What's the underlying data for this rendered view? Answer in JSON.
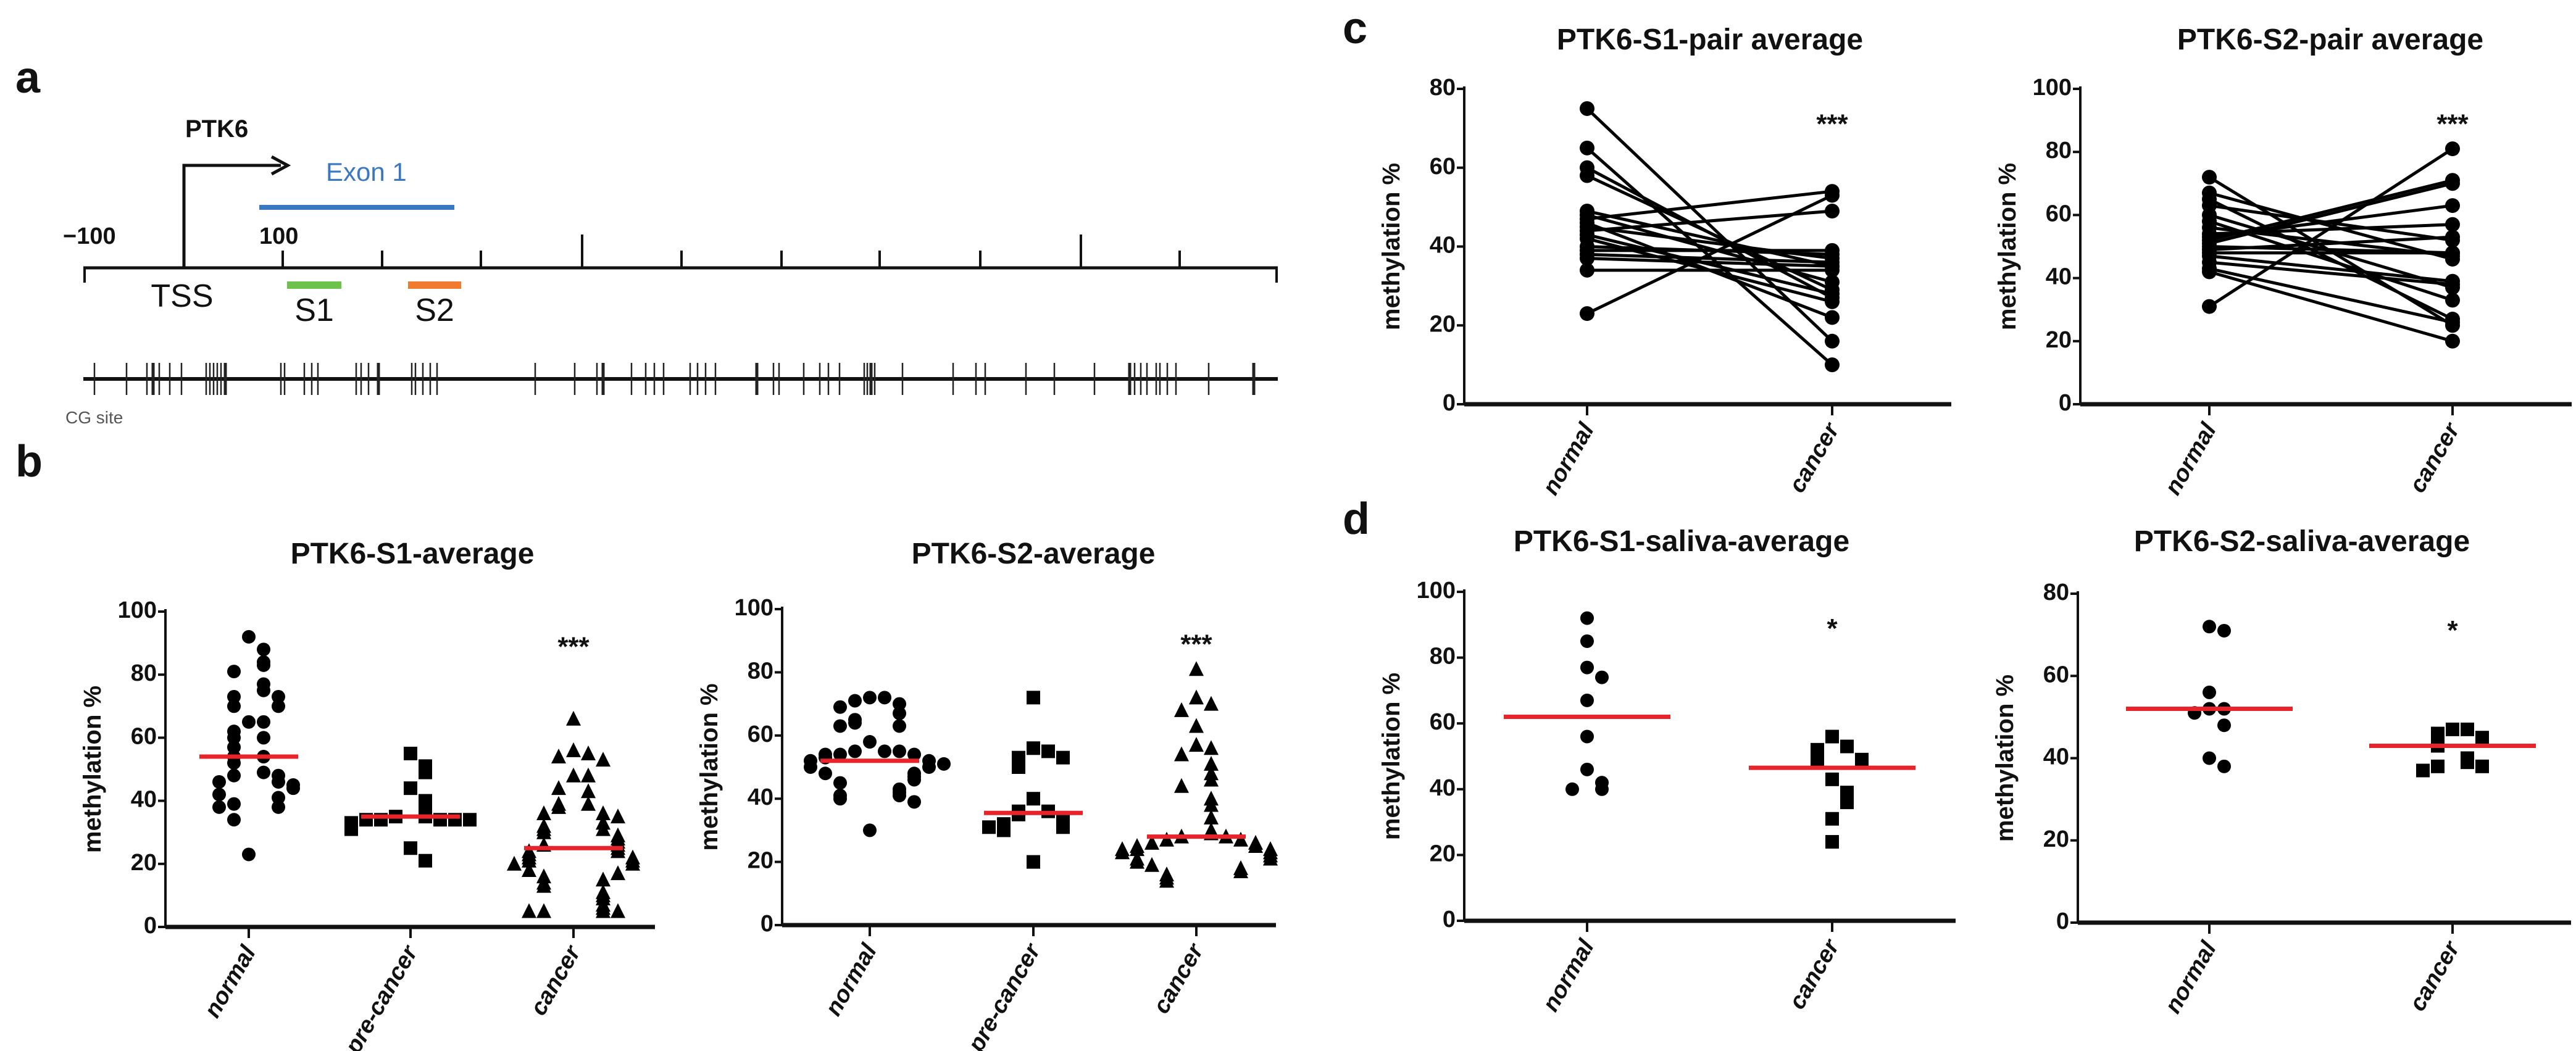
{
  "panel_a": {
    "letter": "a",
    "gene": "PTK6",
    "exon_label": "Exon 1",
    "pos_minus100": "−100",
    "pos_100": "100",
    "tss_label": "TSS",
    "s1_label": "S1",
    "s2_label": "S2",
    "cg_label": "CG site",
    "colors": {
      "exon": "#3a78c4",
      "s1": "#6cc24a",
      "s2": "#f07a30"
    }
  },
  "panel_letters": {
    "b": "b",
    "c": "c",
    "d": "d"
  },
  "colors": {
    "mean_line": "#e8242a",
    "marker": "#000000"
  },
  "chart_data": [
    {
      "id": "b1",
      "type": "scatter",
      "title": "PTK6-S1-average",
      "ylabel": "methylation %",
      "ylim": [
        0,
        100
      ],
      "yticks": [
        0,
        20,
        40,
        60,
        80,
        100
      ],
      "categories": [
        "normal",
        "pre-cancer",
        "cancer"
      ],
      "markers": [
        "circle",
        "square",
        "triangle"
      ],
      "significance": {
        "category": "cancer",
        "label": "***"
      },
      "series": [
        {
          "name": "normal",
          "mean": 54,
          "values": [
            92,
            88,
            84,
            83,
            81,
            77,
            75,
            73,
            73,
            70,
            70,
            65,
            65,
            62,
            60,
            60,
            57,
            54,
            54,
            52,
            49,
            48,
            48,
            46,
            46,
            45,
            44,
            42,
            41,
            39,
            38,
            38,
            34,
            23
          ]
        },
        {
          "name": "pre-cancer",
          "mean": 35,
          "values": [
            55,
            51,
            49,
            44,
            40,
            37,
            35,
            35,
            34,
            34,
            34,
            34,
            34,
            33,
            31,
            25,
            21
          ]
        },
        {
          "name": "cancer",
          "mean": 25,
          "values": [
            66,
            56,
            55,
            54,
            53,
            48,
            48,
            44,
            43,
            39,
            39,
            38,
            36,
            36,
            35,
            33,
            32,
            31,
            31,
            30,
            29,
            28,
            27,
            26,
            26,
            25,
            24,
            24,
            23,
            22,
            22,
            21,
            21,
            20,
            20,
            18,
            17,
            16,
            15,
            14,
            13,
            11,
            10,
            9,
            7,
            6,
            5,
            5,
            5,
            5
          ]
        }
      ]
    },
    {
      "id": "b2",
      "type": "scatter",
      "title": "PTK6-S2-average",
      "ylabel": "methylation %",
      "ylim": [
        0,
        100
      ],
      "yticks": [
        0,
        20,
        40,
        60,
        80,
        100
      ],
      "categories": [
        "normal",
        "pre-cancer",
        "cancer"
      ],
      "markers": [
        "circle",
        "square",
        "triangle"
      ],
      "significance": {
        "category": "cancer",
        "label": "***"
      },
      "series": [
        {
          "name": "normal",
          "mean": 52,
          "values": [
            72,
            72,
            71,
            70,
            69,
            67,
            65,
            64,
            63,
            63,
            58,
            55,
            55,
            55,
            54,
            54,
            54,
            53,
            52,
            52,
            51,
            50,
            50,
            48,
            48,
            47,
            46,
            45,
            43,
            42,
            41,
            41,
            40,
            39,
            30
          ]
        },
        {
          "name": "pre-cancer",
          "mean": 35.5,
          "values": [
            72,
            56,
            55,
            53,
            53,
            50,
            40,
            36,
            36,
            35,
            34,
            32,
            31,
            31,
            30,
            31,
            20
          ]
        },
        {
          "name": "cancer",
          "mean": 28,
          "values": [
            81,
            72,
            70,
            68,
            63,
            57,
            56,
            54,
            51,
            48,
            46,
            44,
            40,
            38,
            34,
            30,
            29,
            28,
            28,
            27,
            27,
            26,
            26,
            25,
            25,
            24,
            24,
            24,
            23,
            23,
            22,
            21,
            21,
            20,
            19,
            18,
            17,
            16,
            15,
            14
          ]
        }
      ]
    },
    {
      "id": "c1",
      "type": "line",
      "title": "PTK6-S1-pair average",
      "ylabel": "methylation %",
      "ylim": [
        0,
        80
      ],
      "yticks": [
        0,
        20,
        40,
        60,
        80
      ],
      "categories": [
        "normal",
        "cancer"
      ],
      "significance": {
        "category": "cancer",
        "label": "***"
      },
      "pairs": [
        [
          75,
          16
        ],
        [
          65,
          10
        ],
        [
          60,
          27
        ],
        [
          58,
          29
        ],
        [
          49,
          35
        ],
        [
          48,
          31
        ],
        [
          47,
          54
        ],
        [
          46,
          22
        ],
        [
          45,
          37
        ],
        [
          44,
          49
        ],
        [
          43,
          28
        ],
        [
          42,
          26
        ],
        [
          40,
          38
        ],
        [
          39,
          39
        ],
        [
          38,
          36
        ],
        [
          37,
          35
        ],
        [
          34,
          34
        ],
        [
          23,
          53
        ]
      ]
    },
    {
      "id": "c2",
      "type": "line",
      "title": "PTK6-S2-pair average",
      "ylabel": "methylation %",
      "ylim": [
        0,
        100
      ],
      "yticks": [
        0,
        20,
        40,
        60,
        80,
        100
      ],
      "categories": [
        "normal",
        "cancer"
      ],
      "significance": {
        "category": "cancer",
        "label": "***"
      },
      "pairs": [
        [
          72,
          25
        ],
        [
          67,
          46
        ],
        [
          65,
          27
        ],
        [
          63,
          52
        ],
        [
          60,
          37
        ],
        [
          58,
          33
        ],
        [
          56,
          47
        ],
        [
          54,
          57
        ],
        [
          53,
          63
        ],
        [
          52,
          71
        ],
        [
          51,
          70
        ],
        [
          50,
          48
        ],
        [
          49,
          53
        ],
        [
          48,
          48
        ],
        [
          47,
          39
        ],
        [
          45,
          38
        ],
        [
          43,
          26
        ],
        [
          42,
          20
        ],
        [
          31,
          81
        ]
      ]
    },
    {
      "id": "d1",
      "type": "scatter",
      "title": "PTK6-S1-saliva-average",
      "ylabel": "methylation %",
      "ylim": [
        0,
        100
      ],
      "yticks": [
        0,
        20,
        40,
        60,
        80,
        100
      ],
      "categories": [
        "normal",
        "cancer"
      ],
      "markers": [
        "circle",
        "square"
      ],
      "significance": {
        "category": "cancer",
        "label": "*"
      },
      "series": [
        {
          "name": "normal",
          "mean": 62,
          "values": [
            92,
            85,
            77,
            74,
            67,
            56,
            46,
            42,
            40,
            40
          ]
        },
        {
          "name": "cancer",
          "mean": 46.5,
          "values": [
            56,
            53,
            52,
            49,
            49,
            43,
            39,
            36,
            31,
            24
          ]
        }
      ]
    },
    {
      "id": "d2",
      "type": "scatter",
      "title": "PTK6-S2-saliva-average",
      "ylabel": "methylation %",
      "ylim": [
        0,
        80
      ],
      "yticks": [
        0,
        20,
        40,
        60,
        80
      ],
      "categories": [
        "normal",
        "cancer"
      ],
      "markers": [
        "circle",
        "square"
      ],
      "significance": {
        "category": "cancer",
        "label": "*"
      },
      "series": [
        {
          "name": "normal",
          "mean": 52,
          "values": [
            72,
            71,
            56,
            52,
            52,
            51,
            48,
            40,
            38
          ]
        },
        {
          "name": "cancer",
          "mean": 43,
          "values": [
            47,
            47,
            46,
            45,
            43,
            40,
            39,
            38,
            38,
            37
          ]
        }
      ]
    }
  ]
}
